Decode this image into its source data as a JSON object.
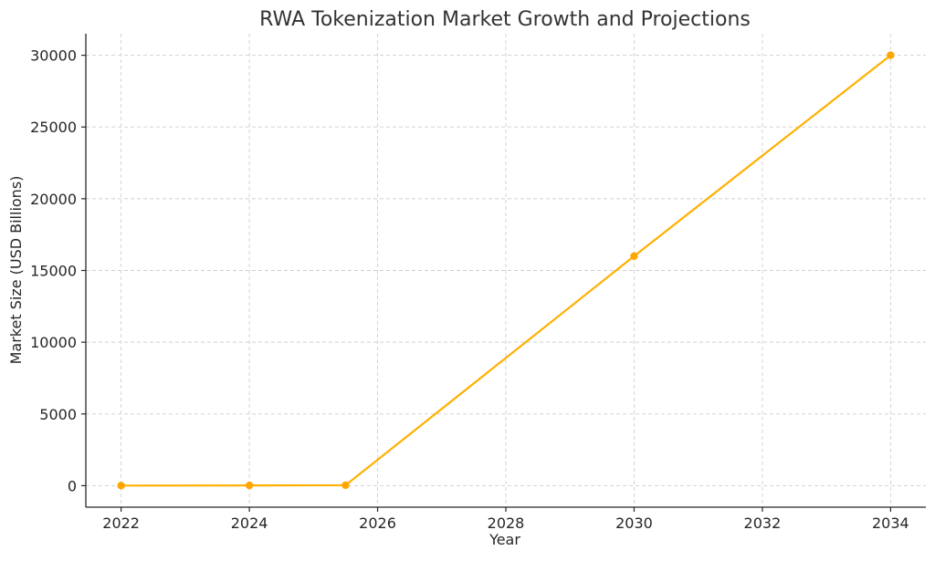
{
  "colors": {
    "series": "#FFB000",
    "marker": "#FFA500",
    "grid": "#cfcfcf",
    "axis": "#262626"
  },
  "chart_data": {
    "type": "line",
    "title": "RWA Tokenization Market Growth and Projections",
    "xlabel": "Year",
    "ylabel": "Market Size (USD Billions)",
    "xlim": [
      2021.45,
      2034.55
    ],
    "ylim": [
      -1500,
      31500
    ],
    "x_ticks": [
      2022,
      2024,
      2026,
      2028,
      2030,
      2032,
      2034
    ],
    "y_ticks": [
      0,
      5000,
      10000,
      15000,
      20000,
      25000,
      30000
    ],
    "grid": true,
    "legend": "none",
    "series": [
      {
        "marker": "circle",
        "x": [
          2022,
          2024,
          2025.5,
          2030,
          2034
        ],
        "y": [
          5,
          16,
          30,
          16000,
          30000
        ]
      }
    ]
  }
}
